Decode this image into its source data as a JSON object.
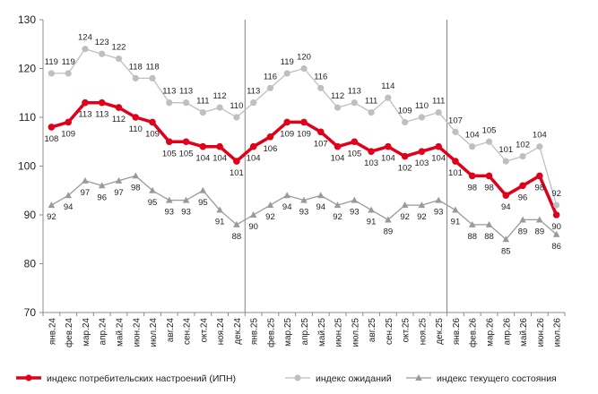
{
  "chart_data": {
    "type": "line",
    "ylim": [
      70,
      130
    ],
    "yticks": [
      "70",
      "80",
      "90",
      "100",
      "110",
      "120",
      "130"
    ],
    "categories": [
      "янв.24",
      "фев.24",
      "мар.24",
      "апр.24",
      "май.24",
      "июн.24",
      "июл.24",
      "авг.24",
      "сен.24",
      "окт.24",
      "ноя.24",
      "дек.24",
      "янв.25",
      "фев.25",
      "мар.25",
      "апр.25",
      "май.25",
      "июн.25",
      "июл.25",
      "авг.25",
      "сен.25",
      "окт.25",
      "ноя.25",
      "дек.25",
      "янв.26",
      "фев.26",
      "мар.26",
      "апр.26",
      "май.26",
      "июн.26",
      "июл.26"
    ],
    "year_separators_after": [
      "дек.24",
      "дек.25"
    ],
    "series": [
      {
        "name": "индекс потребительских настроений (ИПН)",
        "color": "#e0001a",
        "marker": "circle",
        "values": [
          108,
          109,
          113,
          113,
          112,
          110,
          109,
          105,
          105,
          104,
          104,
          101,
          104,
          106,
          109,
          109,
          107,
          104,
          105,
          103,
          104,
          102,
          103,
          104,
          101,
          98,
          98,
          94,
          96,
          98,
          90
        ],
        "labels": [
          "108",
          "109",
          "113",
          "113",
          "112",
          "110",
          "109",
          "105",
          "105",
          "104",
          "104",
          "101",
          "104",
          "106",
          "109",
          "109",
          "107",
          "104",
          "105",
          "103",
          "104",
          "102",
          "103",
          "104",
          "101",
          "98",
          "98",
          "94",
          "96",
          "98",
          "90"
        ]
      },
      {
        "name": "индекс ожиданий",
        "color": "#bfbfbf",
        "marker": "circle",
        "values": [
          119,
          119,
          124,
          123,
          122,
          118,
          118,
          113,
          113,
          111,
          112,
          110,
          113,
          116,
          119,
          120,
          116,
          112,
          113,
          111,
          114,
          109,
          110,
          111,
          107,
          104,
          105,
          101,
          102,
          104,
          92
        ],
        "labels": [
          "119",
          "119",
          "124",
          "123",
          "122",
          "118",
          "118",
          "113",
          "113",
          "111",
          "112",
          "110",
          "113",
          "116",
          "119",
          "120",
          "116",
          "112",
          "113",
          "111",
          "114",
          "109",
          "110",
          "111",
          "107",
          "104",
          "105",
          "101",
          "102",
          "104",
          "92"
        ]
      },
      {
        "name": "индекс текущего состояния",
        "color": "#9a9a9a",
        "marker": "triangle",
        "values": [
          92,
          94,
          97,
          96,
          97,
          98,
          95,
          93,
          93,
          95,
          91,
          88,
          90,
          92,
          94,
          93,
          94,
          92,
          93,
          91,
          89,
          92,
          92,
          93,
          91,
          88,
          88,
          85,
          89,
          89,
          86
        ],
        "labels": [
          "92",
          "94",
          "97",
          "96",
          "97",
          "98",
          "95",
          "93",
          "93",
          "95",
          "91",
          "88",
          "90",
          "92",
          "94",
          "93",
          "94",
          "92",
          "93",
          "91",
          "89",
          "92",
          "92",
          "93",
          "91",
          "88",
          "88",
          "85",
          "89",
          "89",
          "86"
        ]
      }
    ],
    "legend_position": "bottom",
    "grid": false
  }
}
